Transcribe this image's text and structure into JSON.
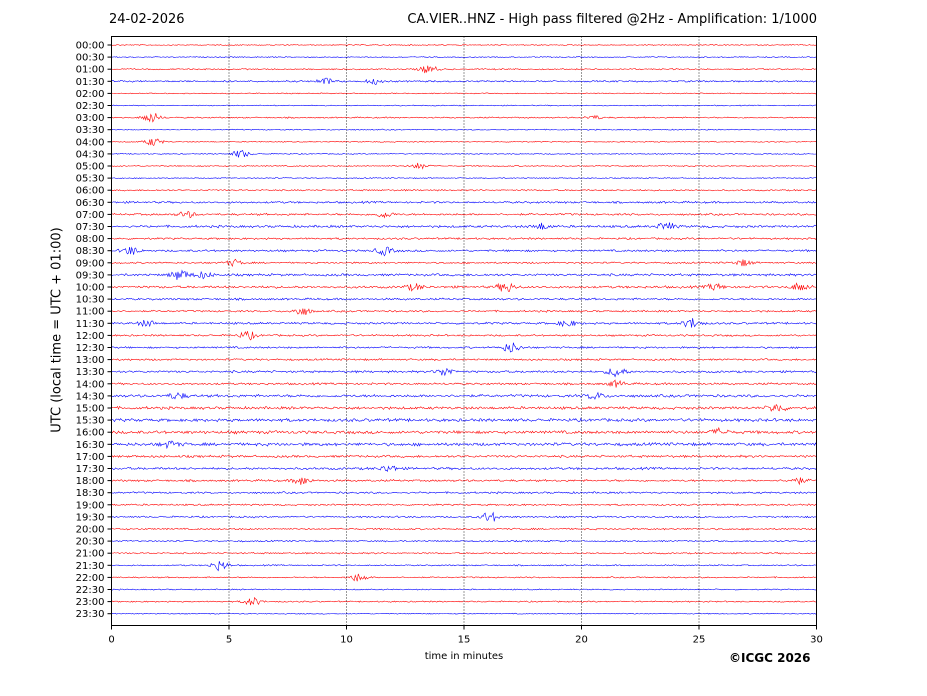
{
  "header": {
    "date": "24-02-2026",
    "title": "CA.VIER..HNZ - High pass filtered @2Hz - Amplification: 1/1000"
  },
  "footer": {
    "credit": "©ICGC 2026"
  },
  "colors": {
    "trace_a": "#ff0000",
    "trace_b": "#0000ff",
    "grid": "#000000",
    "axes": "#000000"
  },
  "chart_data": {
    "type": "line",
    "title": "CA.VIER..HNZ - High pass filtered @2Hz - Amplification: 1/1000",
    "subtitle": "24-02-2026",
    "xlabel": "time in minutes",
    "ylabel": "UTC (local time = UTC + 01:00)",
    "xlim": [
      0,
      30
    ],
    "x_ticks": [
      0,
      5,
      10,
      15,
      20,
      25,
      30
    ],
    "x_tick_labels": [
      "0",
      "5",
      "10",
      "15",
      "20",
      "25",
      "30"
    ],
    "vertical_gridlines": [
      5,
      10,
      15,
      20,
      25
    ],
    "grid": "vertical dotted",
    "row_labels": [
      "00:00",
      "00:30",
      "01:00",
      "01:30",
      "02:00",
      "02:30",
      "03:00",
      "03:30",
      "04:00",
      "04:30",
      "05:00",
      "05:30",
      "06:00",
      "06:30",
      "07:00",
      "07:30",
      "08:00",
      "08:30",
      "09:00",
      "09:30",
      "10:00",
      "10:30",
      "11:00",
      "11:30",
      "12:00",
      "12:30",
      "13:00",
      "13:30",
      "14:00",
      "14:30",
      "15:00",
      "15:30",
      "16:00",
      "16:30",
      "17:00",
      "17:30",
      "18:00",
      "18:30",
      "19:00",
      "19:30",
      "20:00",
      "20:30",
      "21:00",
      "21:30",
      "22:00",
      "22:30",
      "23:00",
      "23:30"
    ],
    "row_colors": [
      "red",
      "blue",
      "red",
      "blue",
      "red",
      "blue",
      "red",
      "blue",
      "red",
      "blue",
      "red",
      "blue",
      "red",
      "blue",
      "red",
      "blue",
      "red",
      "blue",
      "red",
      "blue",
      "red",
      "blue",
      "red",
      "blue",
      "red",
      "blue",
      "red",
      "blue",
      "red",
      "blue",
      "red",
      "blue",
      "red",
      "blue",
      "red",
      "blue",
      "red",
      "blue",
      "red",
      "blue",
      "red",
      "blue",
      "red",
      "blue",
      "red",
      "blue",
      "red",
      "blue"
    ],
    "noise_level": [
      0.6,
      0.6,
      0.8,
      1.0,
      0.6,
      0.6,
      0.8,
      0.6,
      0.6,
      0.6,
      0.7,
      0.6,
      0.9,
      1.2,
      1.2,
      1.4,
      1.1,
      1.2,
      1.0,
      1.4,
      1.4,
      1.2,
      1.1,
      1.2,
      1.1,
      1.1,
      1.1,
      1.3,
      1.2,
      1.6,
      1.6,
      1.8,
      1.8,
      1.8,
      1.4,
      1.4,
      1.2,
      1.1,
      1.0,
      1.0,
      1.0,
      0.9,
      0.9,
      0.8,
      0.8,
      0.7,
      0.8,
      0.6
    ],
    "events": [
      {
        "row": "01:00",
        "minute": 13.5,
        "amplitude": 4
      },
      {
        "row": "01:30",
        "minute": 9.1,
        "amplitude": 3
      },
      {
        "row": "01:30",
        "minute": 11.2,
        "amplitude": 2.5
      },
      {
        "row": "03:00",
        "minute": 1.7,
        "amplitude": 5
      },
      {
        "row": "03:00",
        "minute": 20.5,
        "amplitude": 2
      },
      {
        "row": "04:00",
        "minute": 1.8,
        "amplitude": 4
      },
      {
        "row": "04:30",
        "minute": 5.5,
        "amplitude": 4
      },
      {
        "row": "05:00",
        "minute": 13.1,
        "amplitude": 3
      },
      {
        "row": "07:00",
        "minute": 3.2,
        "amplitude": 3
      },
      {
        "row": "07:00",
        "minute": 11.6,
        "amplitude": 3
      },
      {
        "row": "07:30",
        "minute": 18.3,
        "amplitude": 3
      },
      {
        "row": "07:30",
        "minute": 23.6,
        "amplitude": 4
      },
      {
        "row": "08:30",
        "minute": 0.8,
        "amplitude": 4
      },
      {
        "row": "08:30",
        "minute": 11.6,
        "amplitude": 4
      },
      {
        "row": "09:00",
        "minute": 5.2,
        "amplitude": 3
      },
      {
        "row": "09:00",
        "minute": 26.9,
        "amplitude": 3
      },
      {
        "row": "09:30",
        "minute": 2.9,
        "amplitude": 5
      },
      {
        "row": "09:30",
        "minute": 3.9,
        "amplitude": 3
      },
      {
        "row": "10:00",
        "minute": 12.9,
        "amplitude": 3
      },
      {
        "row": "10:00",
        "minute": 16.8,
        "amplitude": 5
      },
      {
        "row": "10:00",
        "minute": 29.3,
        "amplitude": 4
      },
      {
        "row": "10:00",
        "minute": 25.7,
        "amplitude": 3
      },
      {
        "row": "11:00",
        "minute": 8.1,
        "amplitude": 4
      },
      {
        "row": "11:30",
        "minute": 1.5,
        "amplitude": 3
      },
      {
        "row": "11:30",
        "minute": 19.4,
        "amplitude": 3
      },
      {
        "row": "11:30",
        "minute": 24.7,
        "amplitude": 5
      },
      {
        "row": "12:00",
        "minute": 5.8,
        "amplitude": 4
      },
      {
        "row": "12:30",
        "minute": 17.0,
        "amplitude": 5
      },
      {
        "row": "13:30",
        "minute": 14.2,
        "amplitude": 4
      },
      {
        "row": "13:30",
        "minute": 21.5,
        "amplitude": 5
      },
      {
        "row": "14:00",
        "minute": 21.5,
        "amplitude": 3
      },
      {
        "row": "14:30",
        "minute": 2.8,
        "amplitude": 3
      },
      {
        "row": "14:30",
        "minute": 20.6,
        "amplitude": 3
      },
      {
        "row": "15:00",
        "minute": 28.3,
        "amplitude": 4
      },
      {
        "row": "16:00",
        "minute": 25.9,
        "amplitude": 3
      },
      {
        "row": "16:30",
        "minute": 2.5,
        "amplitude": 3
      },
      {
        "row": "17:30",
        "minute": 11.8,
        "amplitude": 3
      },
      {
        "row": "18:00",
        "minute": 8.1,
        "amplitude": 4
      },
      {
        "row": "18:00",
        "minute": 29.2,
        "amplitude": 3
      },
      {
        "row": "19:30",
        "minute": 16.1,
        "amplitude": 5
      },
      {
        "row": "21:30",
        "minute": 4.6,
        "amplitude": 5
      },
      {
        "row": "22:00",
        "minute": 10.5,
        "amplitude": 4
      },
      {
        "row": "23:00",
        "minute": 6.0,
        "amplitude": 4
      }
    ]
  }
}
